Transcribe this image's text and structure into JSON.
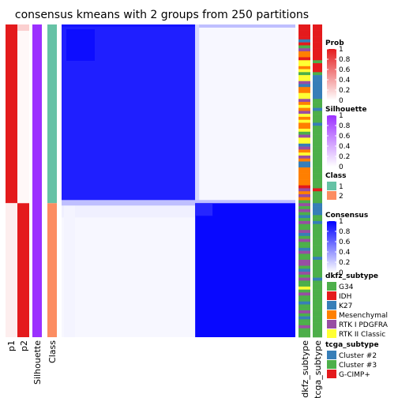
{
  "chart_data": {
    "type": "heatmap",
    "title": "consensus kmeans with 2 groups from 250 partitions",
    "groups": [
      {
        "name": "1",
        "n_samples": 60
      },
      {
        "name": "2",
        "n_samples": 45
      }
    ],
    "consensus_blocks": {
      "group1_core": 0.95,
      "group1_sub_a": 0.92,
      "group1_sub_b": 0.88,
      "group1_vs_group2": 0.03,
      "group2_core": 0.97,
      "group2_edge": 0.85,
      "border": 0.25
    },
    "annotation_columns": [
      "p1",
      "p2",
      "Silhouette",
      "Class"
    ],
    "row_annotation_columns": [
      "dkfz_subtype",
      "tcga_subtype"
    ],
    "legends": [
      {
        "title": "Prob",
        "type": "gradient",
        "ticks": [
          "1",
          "0.8",
          "0.6",
          "0.4",
          "0.2",
          "0"
        ],
        "colors": [
          "#e41a1c",
          "#ffffff"
        ]
      },
      {
        "title": "Silhouette",
        "type": "gradient",
        "ticks": [
          "1",
          "0.8",
          "0.6",
          "0.4",
          "0.2",
          "0"
        ],
        "colors": [
          "#9b30ff",
          "#ffffff"
        ]
      },
      {
        "title": "Class",
        "type": "discrete",
        "items": [
          {
            "label": "1",
            "color": "#66c2a5"
          },
          {
            "label": "2",
            "color": "#fc8d62"
          }
        ]
      },
      {
        "title": "Consensus",
        "type": "gradient",
        "ticks": [
          "1",
          "0.8",
          "0.6",
          "0.4",
          "0.2",
          "0"
        ],
        "colors": [
          "#0000ff",
          "#ffffff"
        ]
      },
      {
        "title": "dkfz_subtype",
        "type": "discrete",
        "items": [
          {
            "label": "G34",
            "color": "#4daf4a"
          },
          {
            "label": "IDH",
            "color": "#e41a1c"
          },
          {
            "label": "K27",
            "color": "#377eb8"
          },
          {
            "label": "Mesenchymal",
            "color": "#ff7f00"
          },
          {
            "label": "RTK I PDGFRA",
            "color": "#984ea3"
          },
          {
            "label": "RTK II Classic",
            "color": "#ffff33"
          }
        ]
      },
      {
        "title": "tcga_subtype",
        "type": "discrete",
        "items": [
          {
            "label": "Cluster #2",
            "color": "#377eb8"
          },
          {
            "label": "Cluster #3",
            "color": "#4daf4a"
          },
          {
            "label": "G-CIMP+",
            "color": "#e41a1c"
          }
        ]
      }
    ]
  }
}
